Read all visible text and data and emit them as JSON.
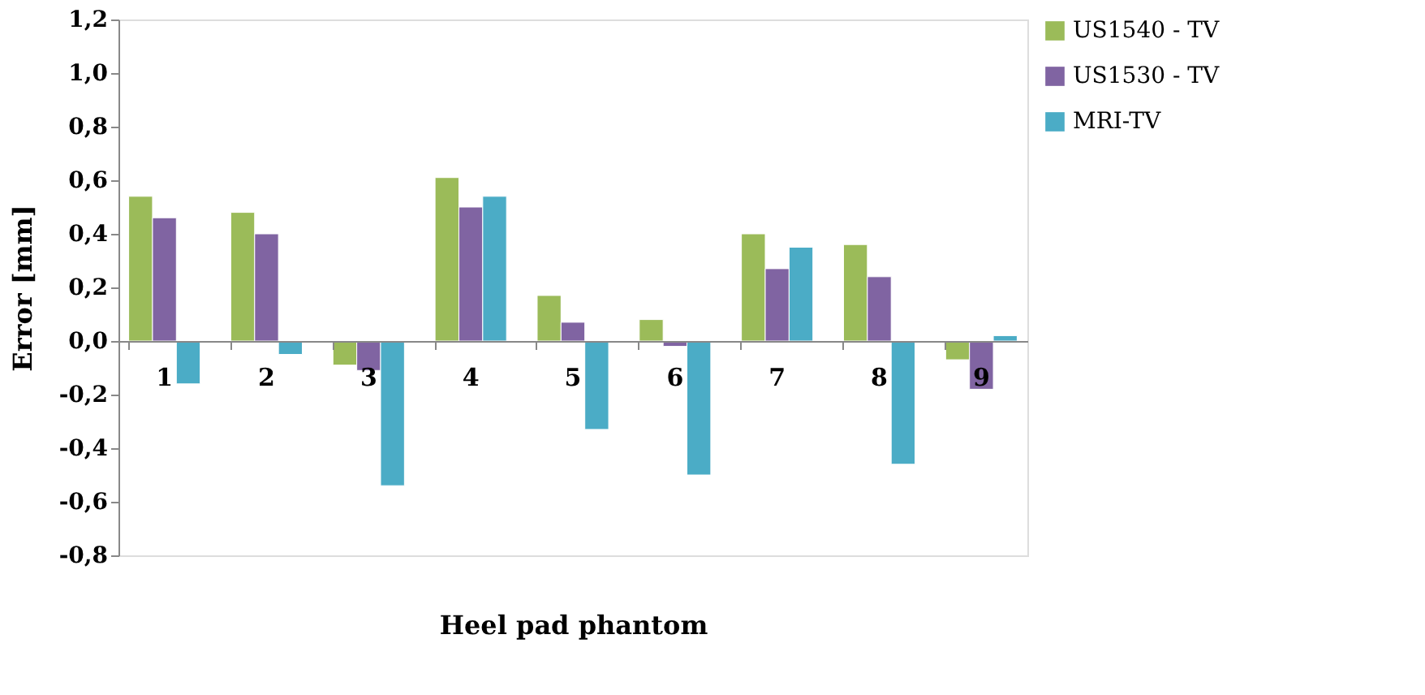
{
  "chart_data": {
    "type": "bar",
    "xlabel": "Heel pad phantom",
    "ylabel": "Error [mm]",
    "categories": [
      "1",
      "2",
      "3",
      "4",
      "5",
      "6",
      "7",
      "8",
      "9"
    ],
    "series": [
      {
        "name": "US1540 - TV",
        "color": "#9bbb59",
        "values": [
          0.54,
          0.48,
          -0.09,
          0.61,
          0.17,
          0.08,
          0.4,
          0.36,
          -0.07
        ]
      },
      {
        "name": "US1530 - TV",
        "color": "#8064a2",
        "values": [
          0.46,
          0.4,
          -0.11,
          0.5,
          0.07,
          -0.02,
          0.27,
          0.24,
          -0.18
        ]
      },
      {
        "name": "MRI-TV",
        "color": "#4bacc6",
        "values": [
          -0.16,
          -0.05,
          -0.54,
          0.54,
          -0.33,
          -0.5,
          0.35,
          -0.46,
          0.02
        ]
      }
    ],
    "ylim": [
      -0.8,
      1.2
    ],
    "yticks": [
      {
        "value": -0.8,
        "label": "-0,8"
      },
      {
        "value": -0.6,
        "label": "-0,6"
      },
      {
        "value": -0.4,
        "label": "-0,4"
      },
      {
        "value": -0.2,
        "label": "-0,2"
      },
      {
        "value": 0,
        "label": "0,0"
      },
      {
        "value": 0.2,
        "label": "0,2"
      },
      {
        "value": 0.4,
        "label": "0,4"
      },
      {
        "value": 0.6,
        "label": "0,6"
      },
      {
        "value": 0.8,
        "label": "0,8"
      },
      {
        "value": 1.0,
        "label": "1,0"
      },
      {
        "value": 1.2,
        "label": "1,2"
      }
    ],
    "grid": false,
    "legend": "right"
  }
}
